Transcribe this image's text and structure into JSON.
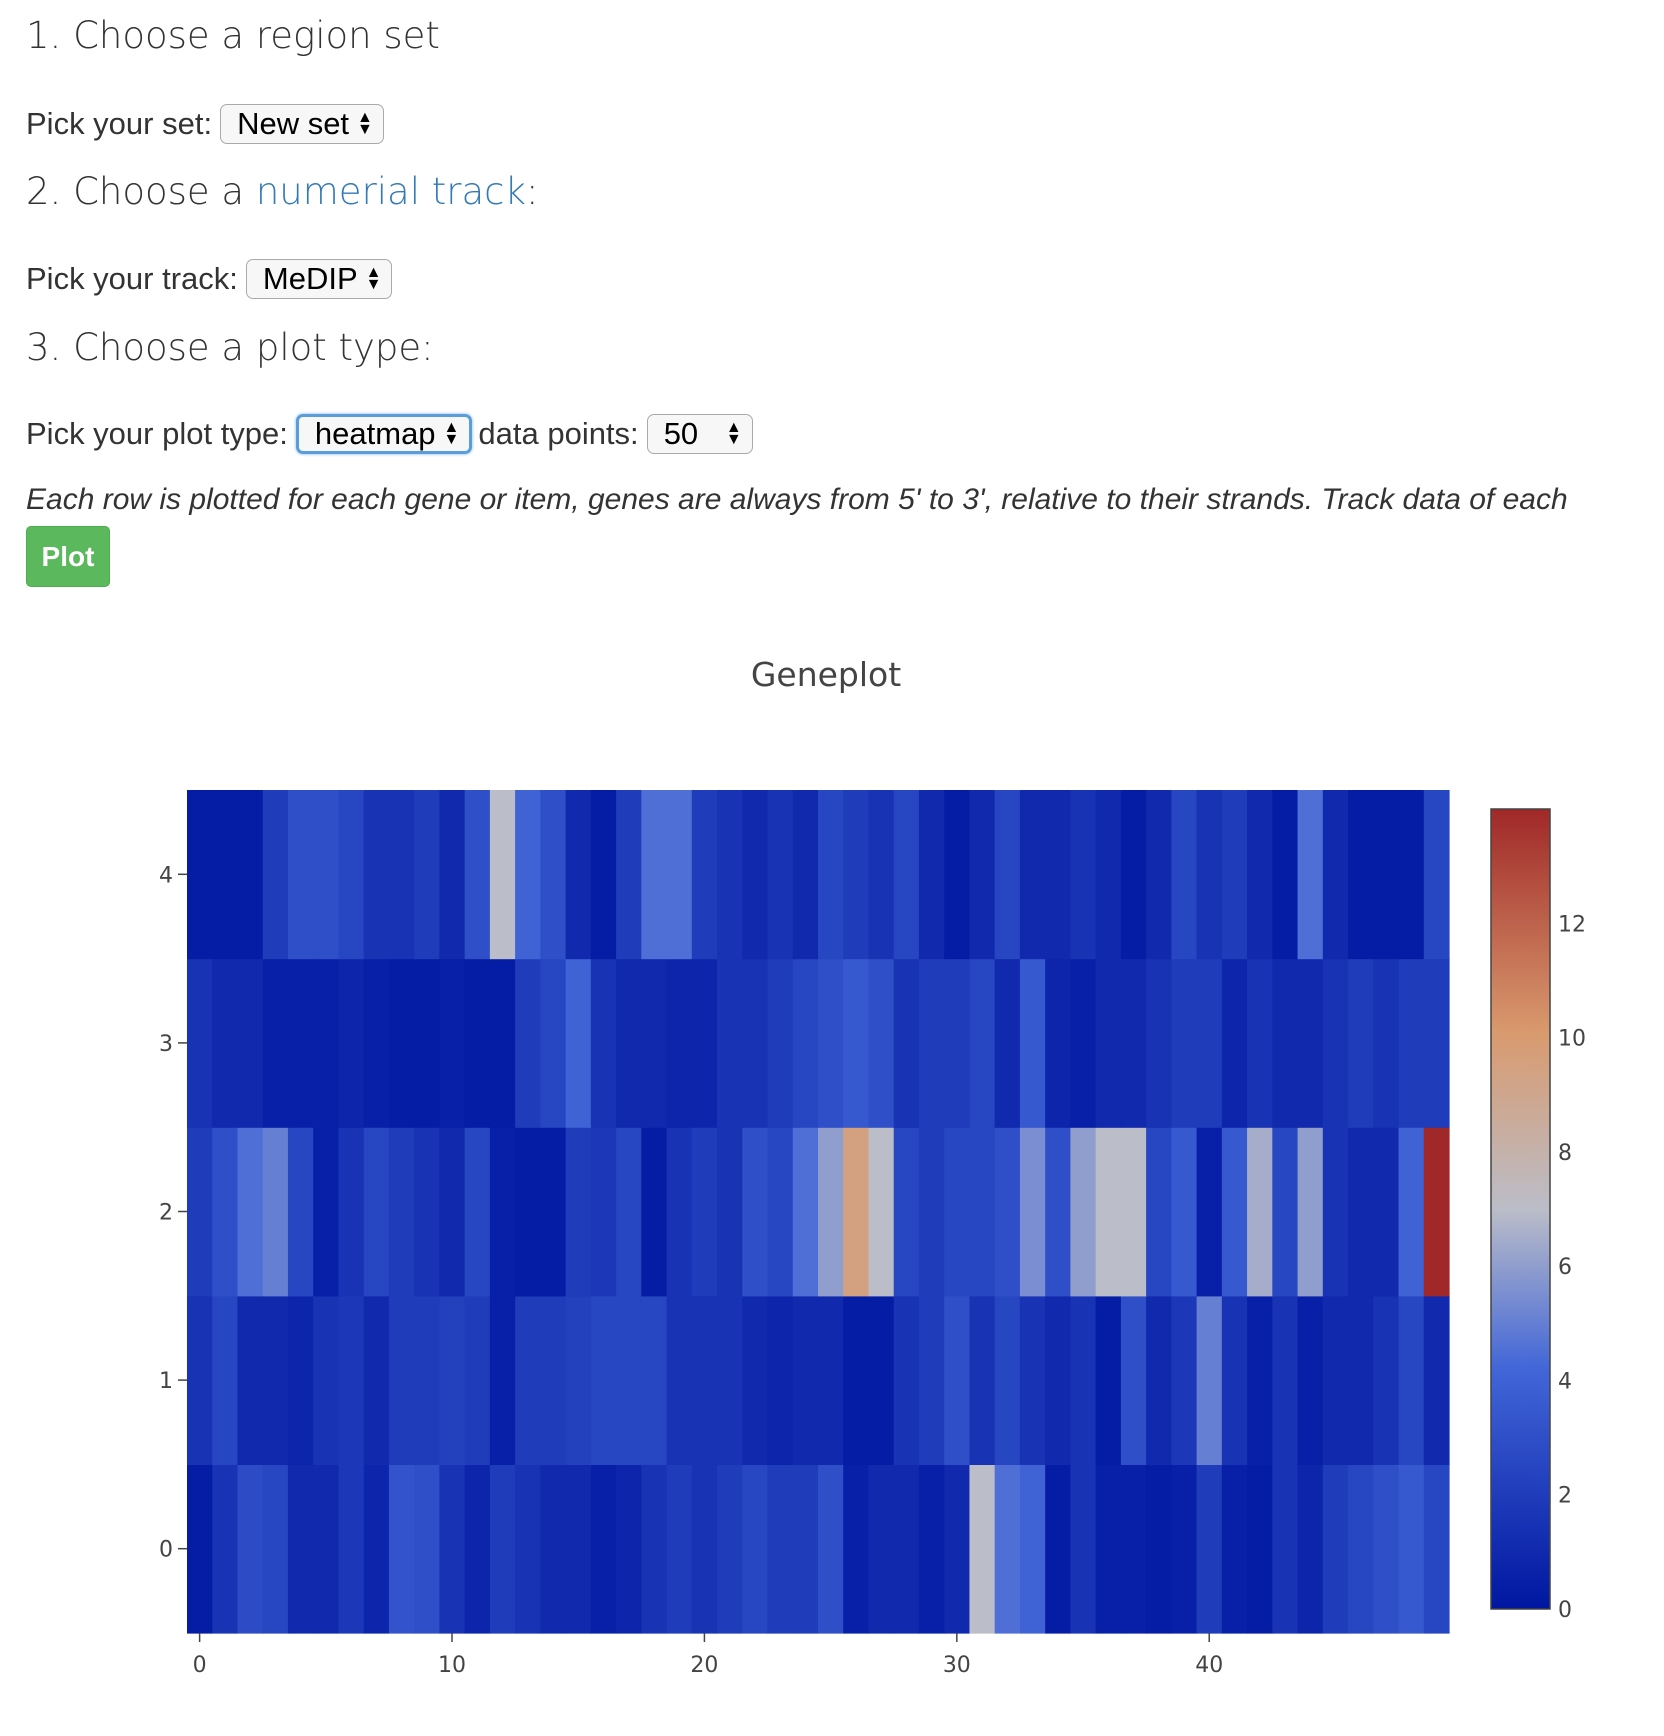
{
  "form": {
    "step1_title": "1. Choose a region set",
    "set_label": "Pick your set:",
    "set_value": "New set",
    "step2_prefix": "2. Choose a ",
    "step2_link": "numerial track",
    "step2_suffix": ":",
    "track_label": "Pick your track:",
    "track_value": "MeDIP",
    "step3_title": "3. Choose a plot type:",
    "plot_type_label": "Pick your plot type:",
    "plot_type_value": "heatmap",
    "data_points_label": "data points:",
    "data_points_value": "50",
    "note": "Each row is plotted for each gene or item, genes are always from 5' to 3', relative to their strands. Track data of each",
    "plot_button": "Plot"
  },
  "colors": {
    "link": "#337ab7",
    "button": "#5cb85c"
  },
  "chart_data": {
    "type": "heatmap",
    "title": "Geneplot",
    "colorscale": [
      "#0016a0",
      "#4266d8",
      "#bbbdc8",
      "#d99a6e",
      "#a02828"
    ],
    "zmin": 0,
    "zmax": 14,
    "colorbar_ticks": [
      0,
      2,
      4,
      6,
      8,
      10,
      12
    ],
    "x_ticks": [
      0,
      10,
      20,
      30,
      40
    ],
    "y_ticks": [
      0,
      1,
      2,
      3,
      4
    ],
    "x": [
      0,
      1,
      2,
      3,
      4,
      5,
      6,
      7,
      8,
      9,
      10,
      11,
      12,
      13,
      14,
      15,
      16,
      17,
      18,
      19,
      20,
      21,
      22,
      23,
      24,
      25,
      26,
      27,
      28,
      29,
      30,
      31,
      32,
      33,
      34,
      35,
      36,
      37,
      38,
      39,
      40,
      41,
      42,
      43,
      44,
      45,
      46,
      47,
      48,
      49
    ],
    "y": [
      0,
      1,
      2,
      3,
      4
    ],
    "z": [
      [
        0.3,
        1.5,
        2.8,
        2.5,
        1.0,
        1.0,
        1.8,
        0.8,
        3.2,
        3.0,
        1.5,
        0.8,
        2.0,
        1.5,
        1.0,
        1.0,
        0.5,
        0.8,
        1.5,
        2.0,
        1.5,
        2.0,
        2.5,
        2.0,
        2.0,
        3.0,
        0.5,
        1.0,
        1.0,
        0.5,
        1.0,
        7.0,
        4.5,
        4.0,
        0.3,
        1.5,
        0.5,
        0.5,
        0.3,
        0.5,
        2.0,
        0.5,
        0.3,
        1.5,
        0.8,
        2.0,
        2.5,
        3.0,
        3.5,
        2.5
      ],
      [
        1.5,
        2.5,
        1.0,
        1.0,
        0.8,
        1.5,
        1.8,
        1.0,
        2.0,
        2.0,
        2.2,
        2.0,
        0.5,
        2.0,
        2.0,
        2.2,
        2.5,
        2.5,
        2.5,
        1.5,
        1.5,
        1.5,
        1.0,
        0.8,
        1.0,
        1.0,
        0.3,
        0.3,
        1.5,
        2.0,
        3.0,
        1.5,
        2.5,
        1.5,
        1.0,
        1.5,
        0.3,
        3.0,
        1.0,
        1.8,
        5.0,
        1.5,
        0.5,
        1.5,
        0.5,
        1.0,
        1.0,
        1.5,
        2.5,
        1.0
      ],
      [
        2.0,
        3.0,
        4.5,
        5.0,
        2.5,
        0.5,
        1.5,
        2.5,
        2.0,
        1.5,
        1.0,
        2.5,
        0.5,
        0.3,
        0.3,
        2.0,
        1.8,
        2.5,
        0.3,
        1.5,
        2.0,
        1.5,
        3.0,
        2.5,
        4.5,
        6.0,
        9.5,
        7.0,
        2.5,
        2.0,
        2.5,
        2.5,
        3.0,
        5.5,
        3.0,
        6.0,
        7.0,
        7.0,
        2.5,
        3.5,
        0.5,
        3.5,
        6.5,
        2.5,
        6.0,
        1.5,
        1.0,
        1.0,
        4.0,
        14.0
      ],
      [
        1.5,
        1.0,
        1.0,
        0.5,
        0.5,
        0.5,
        0.8,
        0.5,
        0.3,
        0.3,
        0.5,
        0.3,
        0.3,
        2.0,
        2.5,
        4.0,
        1.5,
        1.0,
        1.0,
        0.8,
        0.8,
        1.5,
        1.5,
        2.0,
        2.5,
        3.0,
        3.5,
        3.0,
        1.5,
        2.0,
        2.0,
        2.5,
        1.0,
        3.5,
        0.8,
        0.5,
        1.0,
        1.0,
        1.5,
        2.0,
        2.0,
        0.8,
        1.5,
        1.0,
        1.0,
        1.5,
        2.0,
        1.5,
        2.0,
        2.0
      ],
      [
        0.3,
        0.3,
        0.3,
        2.0,
        3.0,
        3.0,
        2.5,
        1.5,
        1.5,
        2.0,
        1.0,
        3.0,
        7.0,
        4.0,
        3.0,
        1.0,
        0.3,
        2.0,
        4.5,
        4.5,
        2.0,
        1.5,
        1.0,
        1.5,
        1.0,
        2.5,
        2.0,
        1.5,
        2.5,
        1.0,
        0.3,
        1.0,
        2.5,
        1.0,
        1.0,
        1.5,
        1.0,
        0.3,
        1.0,
        2.5,
        1.5,
        2.0,
        1.0,
        0.3,
        4.5,
        1.0,
        0.3,
        0.3,
        0.3,
        2.5
      ]
    ]
  }
}
